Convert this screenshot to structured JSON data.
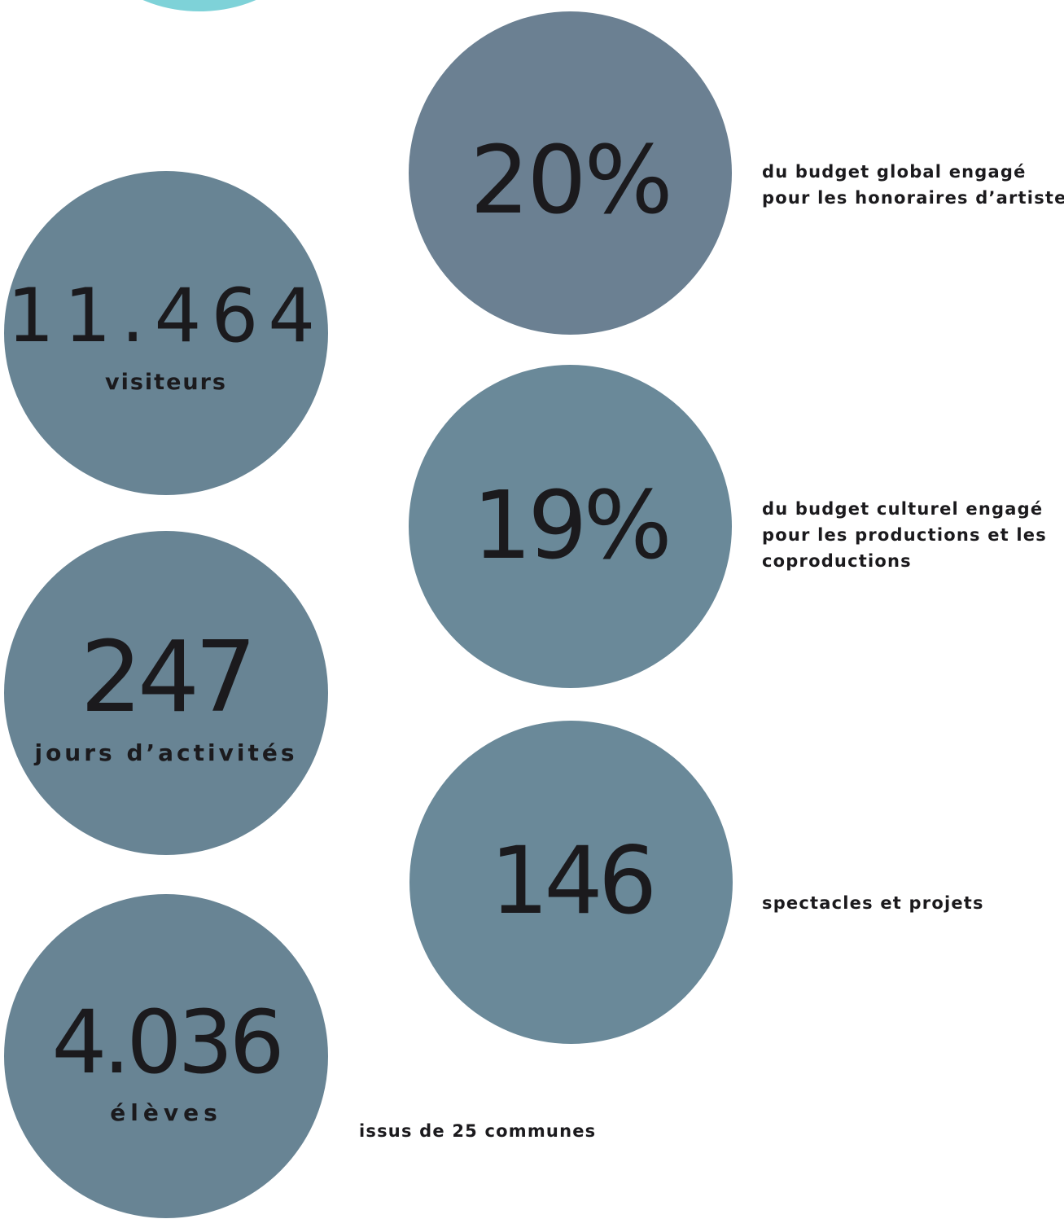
{
  "colors": {
    "accent_arc": "#7ed2d8",
    "circle": "#688494",
    "text": "#1b1a1d",
    "background": "#ffffff"
  },
  "left_stats": [
    {
      "value": "11.464",
      "label": "visiteurs"
    },
    {
      "value": "247",
      "label": "jours d’activités"
    },
    {
      "value": "4.036",
      "label": "élèves"
    }
  ],
  "right_stats": [
    {
      "value": "20%",
      "description_lines": [
        "du budget global engagé",
        "pour les honoraires d’artistes"
      ]
    },
    {
      "value": "19%",
      "description_lines": [
        "du budget culturel engagé",
        "pour les productions et les",
        "coproductions"
      ]
    },
    {
      "value": "146",
      "description_lines": [
        "spectacles et projets"
      ]
    }
  ],
  "students_detail": "issus de 25 communes"
}
